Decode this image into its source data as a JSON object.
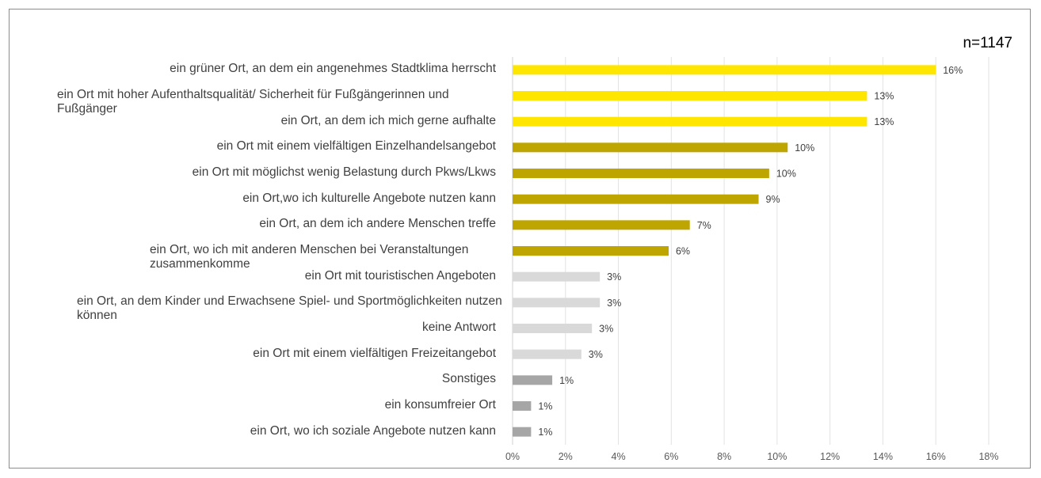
{
  "chart_data": {
    "type": "bar",
    "orientation": "horizontal",
    "title": "",
    "annotation": "n=1147",
    "xlabel": "",
    "ylabel": "",
    "xlim": [
      0,
      18
    ],
    "x_unit": "%",
    "x_ticks": [
      "0%",
      "2%",
      "4%",
      "6%",
      "8%",
      "10%",
      "12%",
      "14%",
      "16%",
      "18%"
    ],
    "grid": true,
    "legend": "none",
    "categories": [
      "ein grüner Ort, an dem ein angenehmes Stadtklima herrscht",
      "ein Ort mit hoher Aufenthaltsqualität/ Sicherheit für Fußgängerinnen und Fußgänger",
      "ein Ort, an dem ich mich gerne aufhalte",
      "ein Ort mit einem vielfältigen Einzelhandelsangebot",
      "ein Ort mit möglichst wenig Belastung durch Pkws/Lkws",
      "ein Ort,wo ich kulturelle Angebote nutzen kann",
      "ein Ort, an dem ich andere Menschen treffe",
      "ein Ort, wo ich mit anderen Menschen bei Veranstaltungen zusammenkomme",
      "ein Ort mit touristischen Angeboten",
      "ein Ort, an dem Kinder und Erwachsene Spiel- und Sportmöglichkeiten nutzen können",
      "keine Antwort",
      "ein Ort mit einem vielfältigen Freizeitangebot",
      "Sonstiges",
      "ein konsumfreier Ort",
      "ein Ort, wo ich soziale Angebote nutzen kann"
    ],
    "values": [
      16.0,
      13.4,
      13.4,
      10.4,
      9.7,
      9.3,
      6.7,
      5.9,
      3.3,
      3.3,
      3.0,
      2.6,
      1.5,
      0.7,
      0.7
    ],
    "data_labels": [
      "16%",
      "13%",
      "13%",
      "10%",
      "10%",
      "9%",
      "7%",
      "6%",
      "3%",
      "3%",
      "3%",
      "3%",
      "1%",
      "1%",
      "1%"
    ],
    "colors": [
      "#FFE600",
      "#FFE600",
      "#FFE600",
      "#BFA500",
      "#BFA500",
      "#BFA500",
      "#BFA500",
      "#BFA500",
      "#D9D9D9",
      "#D9D9D9",
      "#D9D9D9",
      "#D9D9D9",
      "#A6A6A6",
      "#A6A6A6",
      "#A6A6A6"
    ]
  }
}
